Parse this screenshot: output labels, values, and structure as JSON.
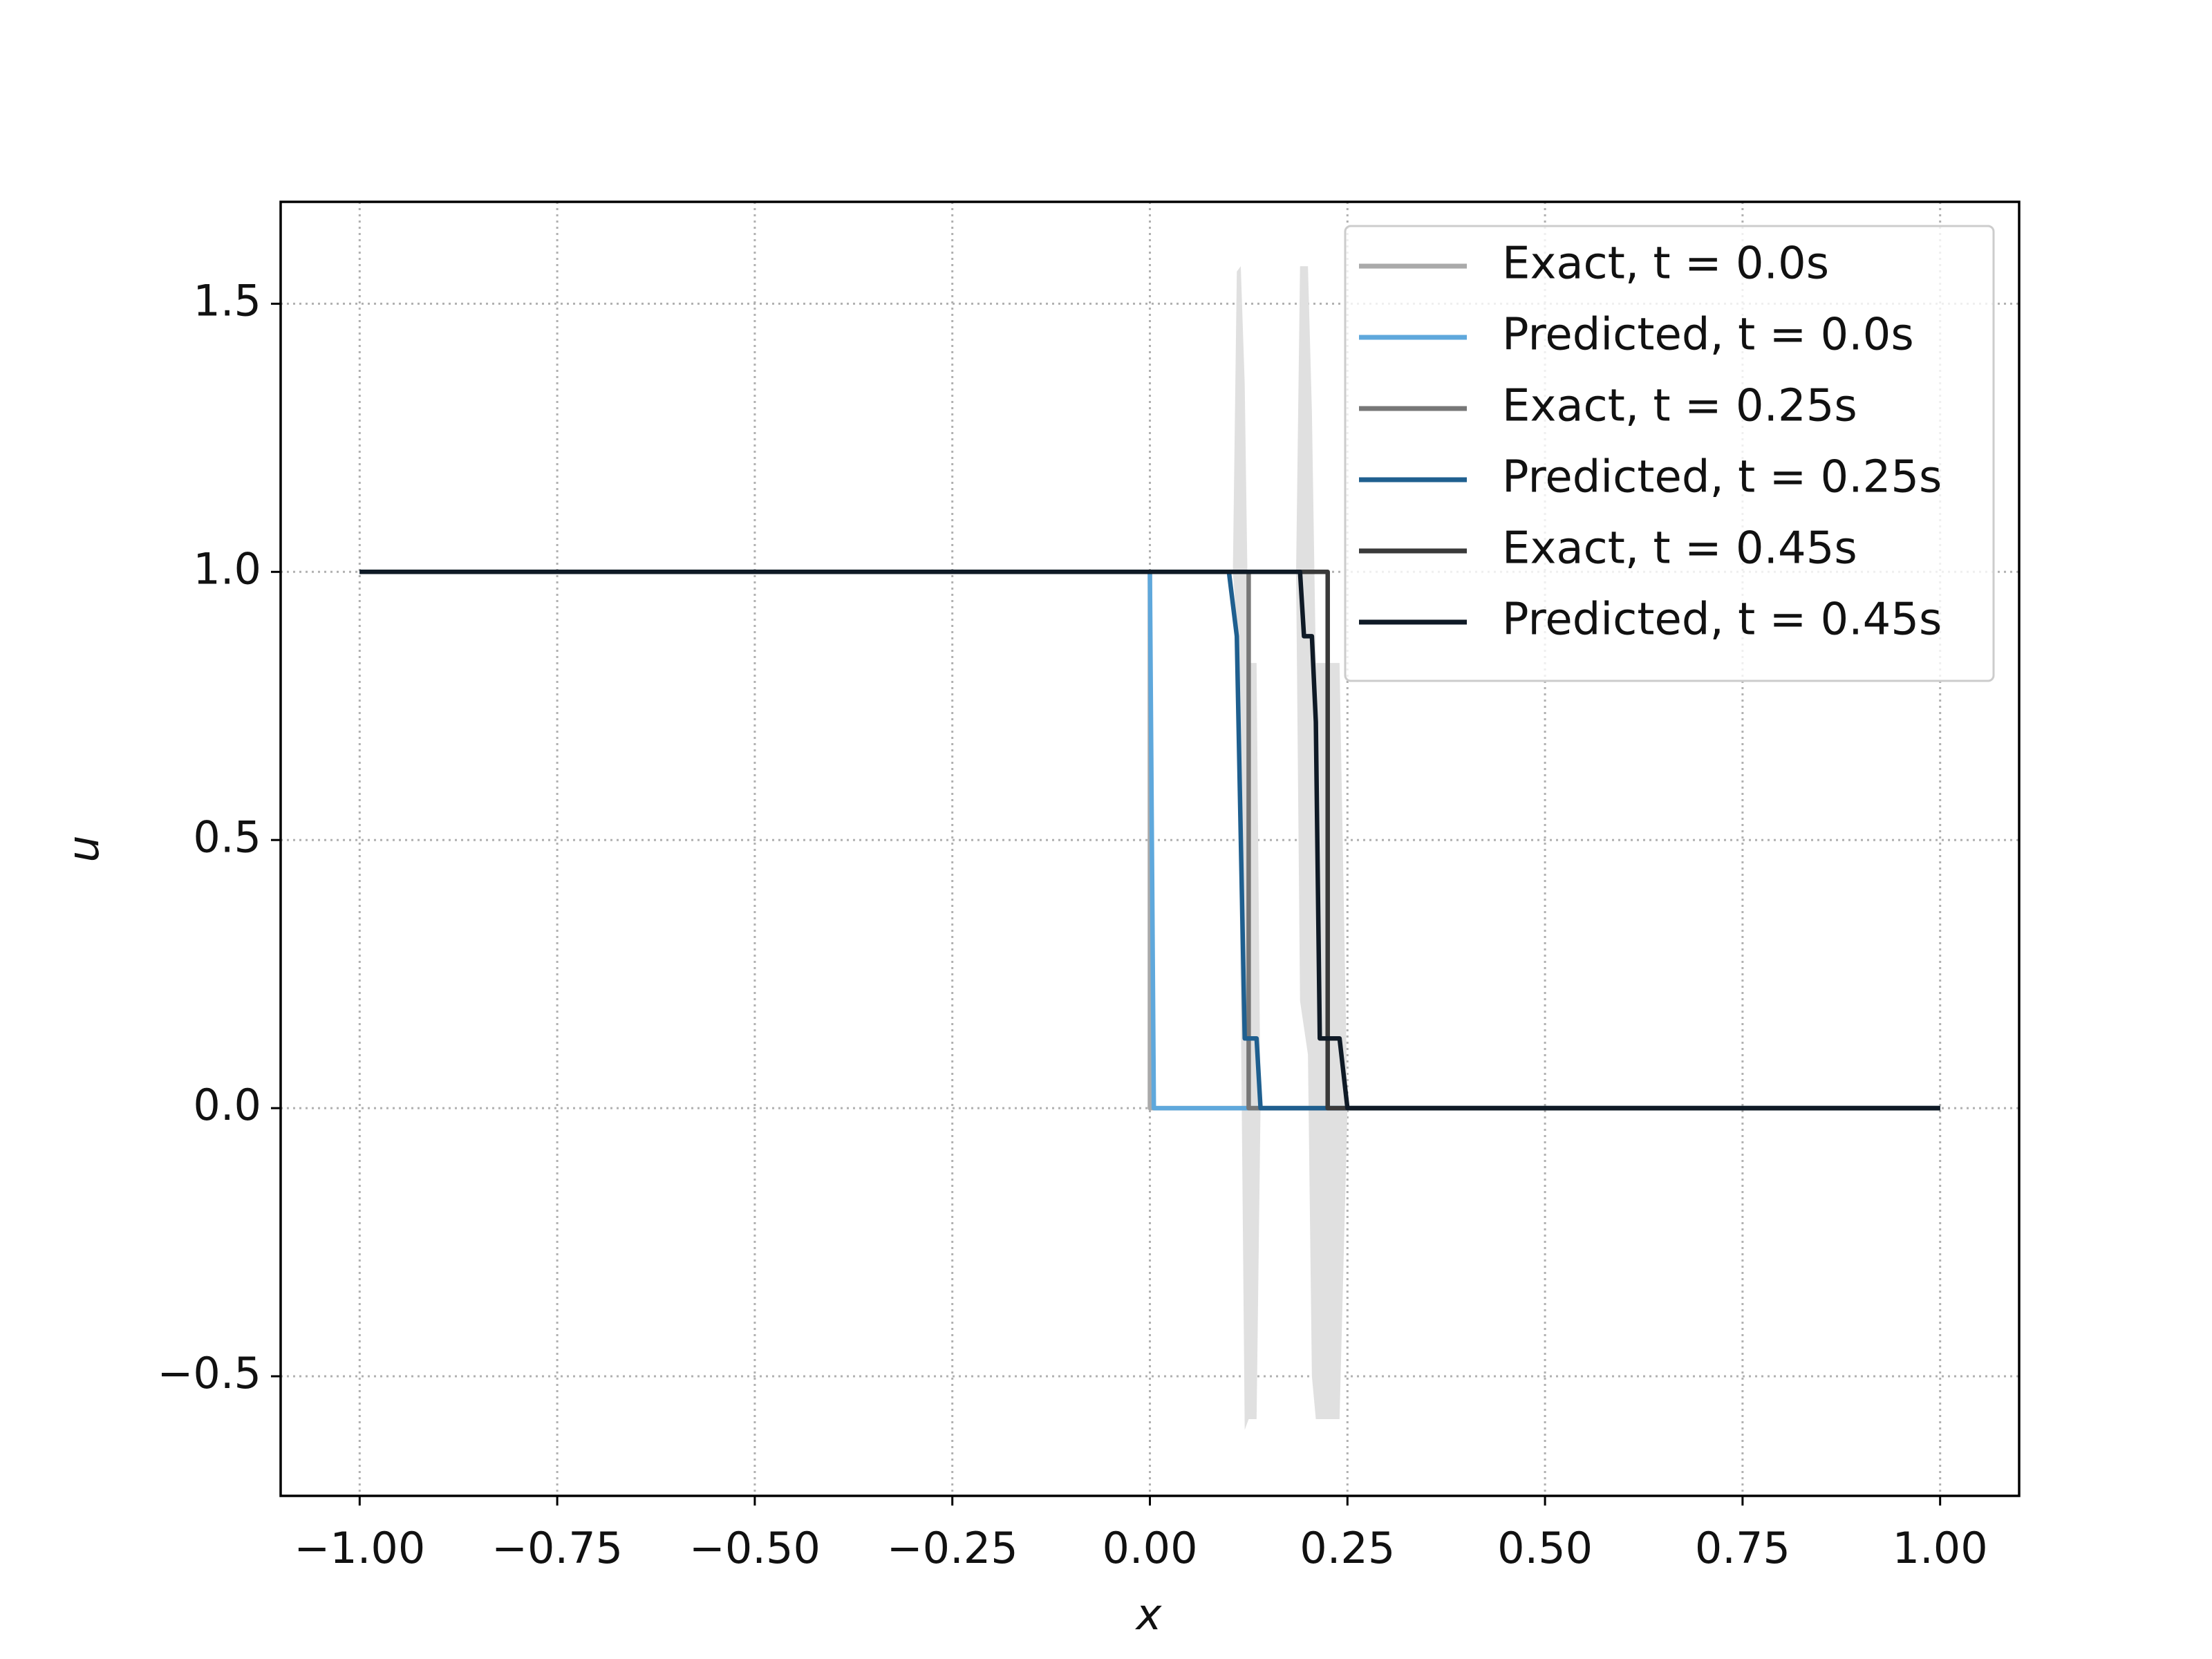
{
  "chart_data": {
    "type": "line",
    "x_label": "x",
    "y_label": "u",
    "xlim": [
      -1.1,
      1.1
    ],
    "ylim": [
      -0.723,
      1.69
    ],
    "xticks": [
      {
        "value": -1,
        "label": "−1.00"
      },
      {
        "value": -0.75,
        "label": "−0.75"
      },
      {
        "value": -0.5,
        "label": "−0.50"
      },
      {
        "value": -0.25,
        "label": "−0.25"
      },
      {
        "value": 0,
        "label": "0.00"
      },
      {
        "value": 0.25,
        "label": "0.25"
      },
      {
        "value": 0.5,
        "label": "0.50"
      },
      {
        "value": 0.75,
        "label": "0.75"
      },
      {
        "value": 1,
        "label": "1.00"
      }
    ],
    "yticks": [
      {
        "value": -0.5,
        "label": "−0.5"
      },
      {
        "value": 0,
        "label": "0.0"
      },
      0.5,
      {
        "value": 1,
        "label": "1.0"
      },
      1.5
    ],
    "grid": true,
    "legend": "upper right",
    "band": {
      "color": "#e0e0e0",
      "x": [
        0.105,
        0.11,
        0.115,
        0.12,
        0.125,
        0.135,
        0.14,
        null,
        0.185,
        0.19,
        0.2,
        0.205,
        0.21,
        0.24,
        0.25
      ],
      "upper": [
        1,
        1.56,
        1.57,
        1.35,
        0.83,
        0.83,
        0,
        null,
        1,
        1.57,
        1.57,
        1.3,
        0.83,
        0.83,
        0
      ],
      "lower": [
        1,
        0.9,
        0.2,
        -0.6,
        -0.58,
        -0.58,
        0,
        null,
        1,
        0.2,
        0.1,
        -0.5,
        -0.58,
        -0.58,
        0
      ]
    },
    "series": [
      {
        "name": "Exact, t = 0.0s",
        "color": "#aaaaaa",
        "x": [
          -1,
          0,
          0,
          1
        ],
        "values": [
          1,
          1,
          0,
          0
        ]
      },
      {
        "name": "Predicted, t = 0.0s",
        "color": "#5fa8dc",
        "x": [
          -1,
          0,
          0.005,
          1
        ],
        "values": [
          1,
          1,
          0,
          0
        ]
      },
      {
        "name": "Exact, t = 0.25s",
        "color": "#777777",
        "x": [
          -1,
          0.125,
          0.125,
          1
        ],
        "values": [
          1,
          1,
          0,
          0
        ]
      },
      {
        "name": "Predicted, t = 0.25s",
        "color": "#1f5f8f",
        "x": [
          -1,
          0.1,
          0.11,
          0.12,
          0.135,
          0.14,
          1
        ],
        "values": [
          1,
          1,
          0.88,
          0.13,
          0.13,
          0,
          0
        ]
      },
      {
        "name": "Exact, t = 0.45s",
        "color": "#3a3a3a",
        "x": [
          -1,
          0.225,
          0.225,
          1
        ],
        "values": [
          1,
          1,
          0,
          0
        ]
      },
      {
        "name": "Predicted, t = 0.45s",
        "color": "#0f1a26",
        "x": [
          -1,
          0.19,
          0.195,
          0.205,
          0.21,
          0.215,
          0.24,
          0.25,
          1
        ],
        "values": [
          1,
          1,
          0.88,
          0.88,
          0.72,
          0.13,
          0.13,
          0,
          0
        ]
      }
    ]
  }
}
